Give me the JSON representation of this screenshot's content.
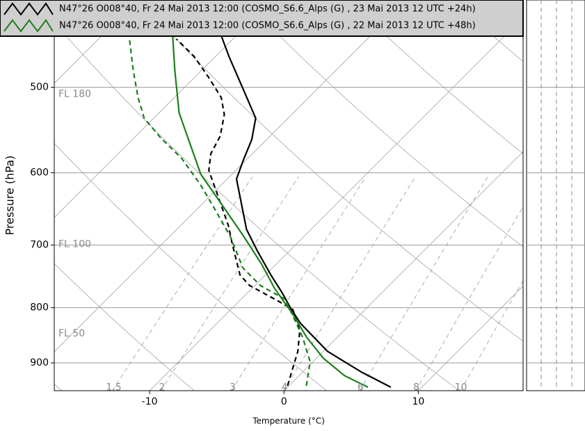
{
  "chart_data": {
    "type": "skewt",
    "ylabel": "Pressure (hPa)",
    "xlabel": "Temperature (°C)",
    "ylim": [
      955,
      415
    ],
    "log_y": true,
    "yticks": [
      500,
      600,
      700,
      800,
      900
    ],
    "xlim": [
      -17.1,
      17.8
    ],
    "xticks": [
      -10,
      0,
      10
    ],
    "skew_degrees": 45,
    "grid": true,
    "flight_levels": [
      {
        "label": "FL 180",
        "pressure": 506
      },
      {
        "label": "FL 100",
        "pressure": 697
      },
      {
        "label": "FL 50",
        "pressure": 843
      }
    ],
    "mixing_ratios": [
      1.5,
      2,
      3,
      4,
      6,
      8,
      10
    ],
    "series": [
      {
        "name": "N47°26 O008°40, Fr 24 Mai 2013 12:00 (COSMO_S6.6_Alps (G) , 23 Mai 2013 12 UTC  +24h)",
        "color": "#000000",
        "temperature_profile": {
          "pressure": [
            948,
            918,
            878,
            827,
            803,
            774,
            746,
            710,
            677,
            608,
            584,
            559,
            534,
            511,
            468,
            447
          ],
          "temperature": [
            7.7,
            4.4,
            0.3,
            -3.8,
            -5.5,
            -7.5,
            -9.6,
            -12.3,
            -14.8,
            -19.3,
            -20.2,
            -21.1,
            -22.4,
            -24.6,
            -29.0,
            -31.2
          ]
        },
        "dewpoint_profile": {
          "pressure": [
            945,
            911,
            878,
            840,
            803,
            788,
            763,
            746,
            698,
            672,
            624,
            597,
            576,
            555,
            530,
            511,
            489,
            468,
            451
          ],
          "temperature": [
            -0.1,
            -1.0,
            -1.9,
            -3.3,
            -5.4,
            -7.2,
            -10.4,
            -11.9,
            -14.8,
            -16.4,
            -19.9,
            -22.0,
            -23.1,
            -23.7,
            -25.0,
            -26.5,
            -29.0,
            -31.6,
            -34.2
          ]
        }
      },
      {
        "name": "N47°26 O008°40, Fr 24 Mai 2013 12:00 (COSMO_S6.6_Alps (G) , 22 Mai 2013 12 UTC  +48h)",
        "color": "#1a7f1a",
        "temperature_profile": {
          "pressure": [
            948,
            925,
            891,
            852,
            809,
            768,
            729,
            687,
            643,
            602,
            528,
            482,
            447,
            415
          ],
          "temperature": [
            6.0,
            3.4,
            0.5,
            -2.3,
            -5.2,
            -8.3,
            -11.1,
            -14.5,
            -18.4,
            -22.3,
            -28.5,
            -32.0,
            -34.8,
            -37.6
          ]
        },
        "dewpoint_profile": {
          "pressure": [
            945,
            898,
            852,
            786,
            763,
            735,
            687,
            648,
            615,
            582,
            557,
            534,
            511,
            482,
            451
          ],
          "temperature": [
            1.3,
            -0.2,
            -2.6,
            -6.7,
            -9.6,
            -12.2,
            -15.5,
            -18.7,
            -21.6,
            -24.9,
            -28.0,
            -30.7,
            -32.7,
            -35.1,
            -37.7
          ]
        }
      }
    ]
  }
}
